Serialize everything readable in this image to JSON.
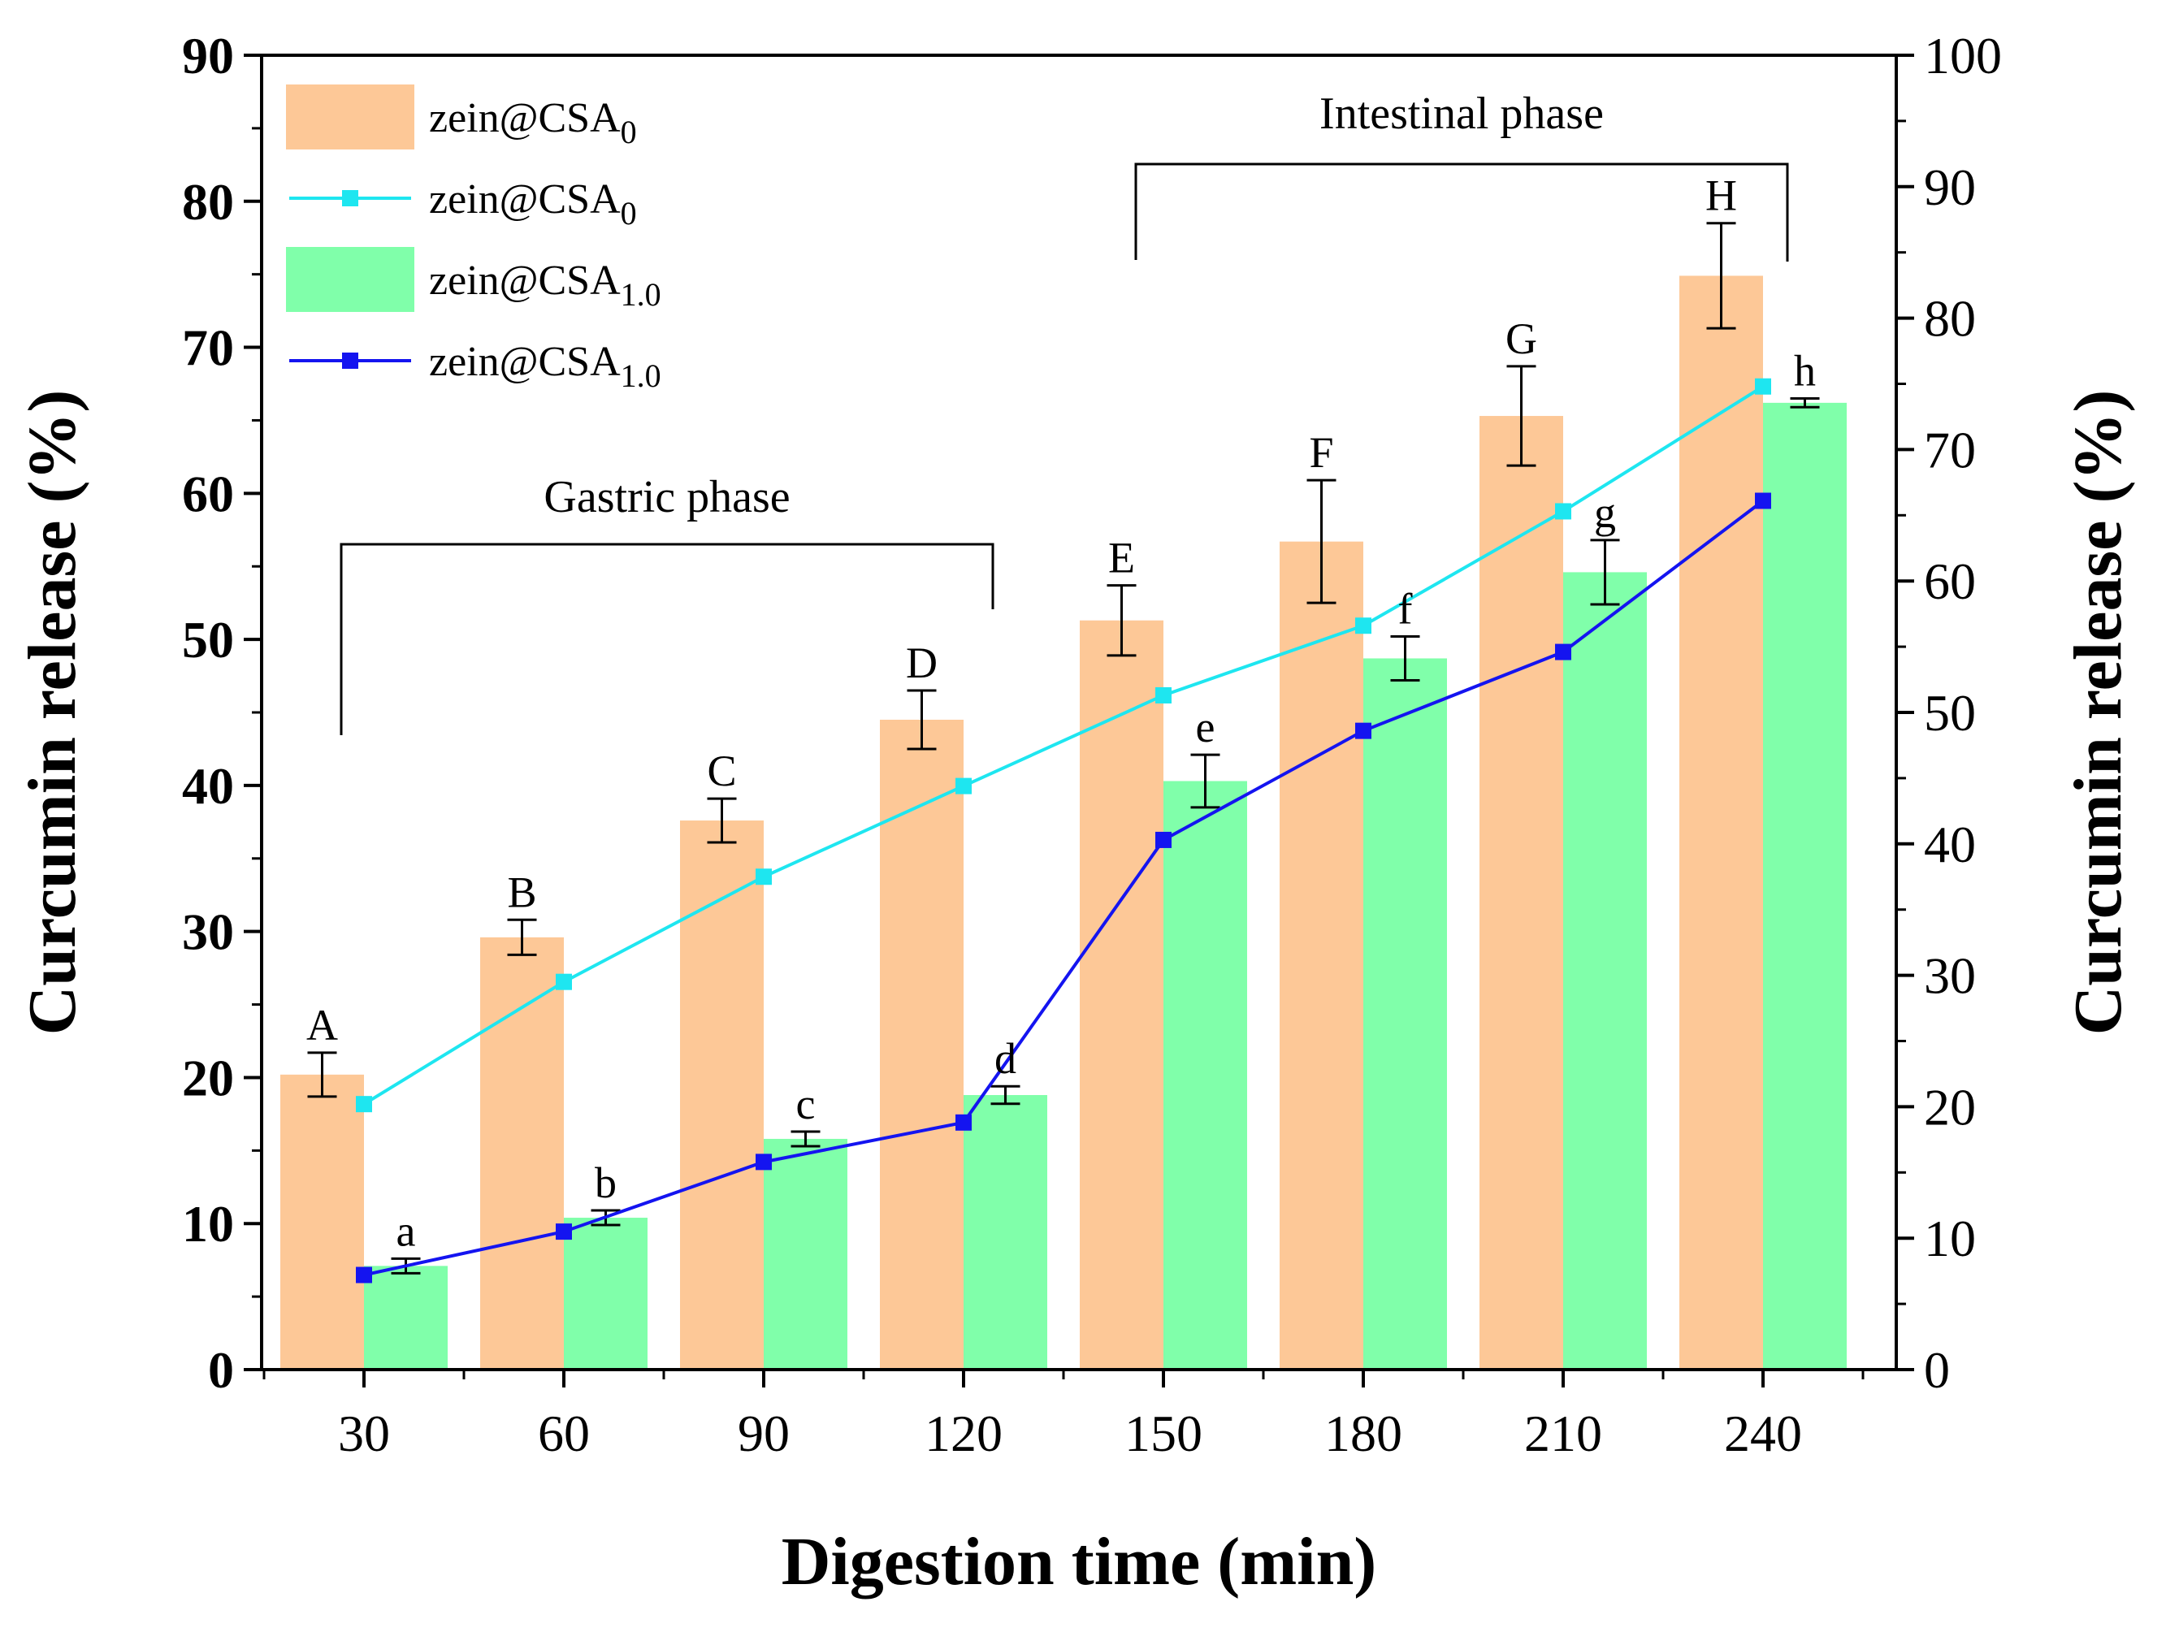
{
  "chart_data": {
    "type": "bar",
    "xlabel": "Digestion time (min)",
    "ylabel": "Curcumin release (%)",
    "ylabel_right": "Curcumin release (%)",
    "categories": [
      "30",
      "60",
      "90",
      "120",
      "150",
      "180",
      "210",
      "240"
    ],
    "ylim": [
      0,
      90
    ],
    "y_ticks": [
      "0",
      "10",
      "20",
      "30",
      "40",
      "50",
      "60",
      "70",
      "80",
      "90"
    ],
    "ylim_right": [
      0,
      100
    ],
    "y_ticks_right": [
      "0",
      "10",
      "20",
      "30",
      "40",
      "50",
      "60",
      "70",
      "80",
      "90",
      "100"
    ],
    "bar_series": [
      {
        "name_main": "zein@CSA",
        "name_sub": "0",
        "color": "#FDC897",
        "values": [
          20.2,
          29.6,
          37.6,
          44.5,
          51.3,
          56.7,
          65.3,
          74.9
        ],
        "errors": [
          1.5,
          1.2,
          1.5,
          2.0,
          2.4,
          4.2,
          3.4,
          3.6
        ],
        "letters": [
          "A",
          "B",
          "C",
          "D",
          "E",
          "F",
          "G",
          "H"
        ]
      },
      {
        "name_main": "zein@CSA",
        "name_sub": "1.0",
        "color": "#80FFAA",
        "values": [
          7.1,
          10.4,
          15.8,
          18.8,
          40.3,
          48.7,
          54.6,
          66.2
        ],
        "errors": [
          0.5,
          0.5,
          0.5,
          0.6,
          1.8,
          1.5,
          2.2,
          0.3
        ],
        "letters": [
          "a",
          "b",
          "c",
          "d",
          "e",
          "f",
          "g",
          "h"
        ]
      }
    ],
    "line_series": [
      {
        "name_main": "zein@CSA",
        "name_sub": "0",
        "color": "#1EE6F0",
        "axis": "right",
        "values": [
          20.2,
          29.5,
          37.5,
          44.4,
          51.3,
          56.6,
          65.3,
          74.8
        ]
      },
      {
        "name_main": "zein@CSA",
        "name_sub": "1.0",
        "color": "#1414F0",
        "axis": "right",
        "values": [
          7.2,
          10.5,
          15.8,
          18.8,
          40.3,
          48.6,
          54.6,
          66.1
        ]
      }
    ],
    "annotations": [
      {
        "text": "Gastric phase",
        "from": "30",
        "to": "120"
      },
      {
        "text": "Intestinal phase",
        "from": "150",
        "to": "240"
      }
    ],
    "legend_position": "top-left"
  }
}
